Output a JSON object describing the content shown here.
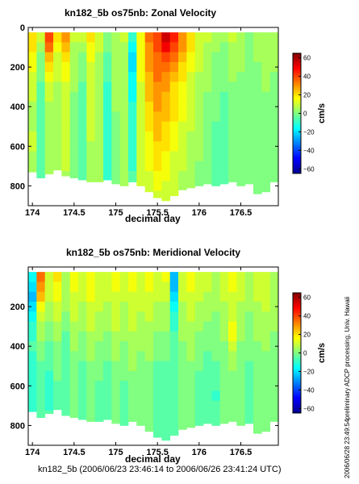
{
  "footer": {
    "caption": "kn182_5b (2006/06/23 23:46:14 to 2006/06/26 23:41:24 UTC)",
    "credit": "preliminary ADCP processing,  Univ. Hawaii",
    "timestamp": "2006/06/28 23:49:54"
  },
  "chart_data": [
    {
      "type": "heatmap",
      "title": "kn182_5b os75nb: Zonal Velocity",
      "xlabel": "decimal day",
      "ylabel": "",
      "colorbar_label": "cm/s",
      "xlim": [
        173.95,
        176.95
      ],
      "ylim": [
        900,
        0
      ],
      "x_ticks": [
        174,
        174.5,
        175,
        175.5,
        176,
        176.5
      ],
      "x_tick_labels": [
        "174",
        "174.5",
        "175",
        "175.5",
        "176",
        "176.5"
      ],
      "y_ticks": [
        0,
        200,
        400,
        600,
        800
      ],
      "y_tick_labels": [
        "0",
        "200",
        "400",
        "600",
        "800"
      ],
      "colorbar_ticks": [
        60,
        40,
        20,
        0,
        -20,
        -40,
        -60
      ],
      "colorbar_tick_labels": [
        "60",
        "40",
        "20",
        "0",
        "−20",
        "−40",
        "−60"
      ],
      "color_range": [
        -65,
        65
      ],
      "colormap": [
        "#00008f",
        "#0000ff",
        "#0080ff",
        "#00ffff",
        "#80ff80",
        "#ffff00",
        "#ff8000",
        "#ff0000",
        "#800000"
      ],
      "missing_color": "#ffffff",
      "x": [
        174.0,
        174.1,
        174.2,
        174.3,
        174.4,
        174.5,
        174.6,
        174.7,
        174.8,
        174.9,
        175.0,
        175.1,
        175.2,
        175.3,
        175.4,
        175.5,
        175.6,
        175.7,
        175.8,
        175.9,
        176.0,
        176.1,
        176.2,
        176.3,
        176.4,
        176.5,
        176.6,
        176.7,
        176.8,
        176.9
      ],
      "depth": [
        50,
        100,
        150,
        200,
        250,
        300,
        350,
        400,
        450,
        500,
        550,
        600,
        650,
        700,
        750,
        800,
        850
      ],
      "bottom_depth": [
        730,
        760,
        740,
        720,
        750,
        760,
        770,
        780,
        780,
        770,
        790,
        800,
        780,
        800,
        830,
        860,
        880,
        850,
        820,
        810,
        800,
        790,
        800,
        790,
        780,
        800,
        790,
        840,
        830,
        780
      ],
      "values": [
        [
          20,
          10,
          40,
          20,
          30,
          10,
          10,
          20,
          10,
          0,
          5,
          10,
          -10,
          15,
          35,
          40,
          55,
          45,
          30,
          20,
          10,
          10,
          5,
          5,
          10,
          5,
          0,
          5,
          5,
          5
        ],
        [
          20,
          5,
          35,
          15,
          25,
          5,
          5,
          15,
          10,
          0,
          5,
          5,
          -15,
          15,
          30,
          40,
          50,
          40,
          30,
          20,
          10,
          5,
          5,
          0,
          5,
          5,
          0,
          5,
          5,
          5
        ],
        [
          15,
          0,
          25,
          10,
          20,
          5,
          0,
          15,
          5,
          -5,
          5,
          5,
          -20,
          15,
          30,
          35,
          40,
          35,
          25,
          15,
          10,
          5,
          0,
          0,
          5,
          5,
          0,
          5,
          5,
          5
        ],
        [
          15,
          0,
          20,
          10,
          15,
          5,
          0,
          10,
          5,
          -5,
          5,
          5,
          -20,
          15,
          30,
          35,
          35,
          30,
          20,
          15,
          10,
          5,
          0,
          0,
          5,
          5,
          0,
          0,
          5,
          5
        ],
        [
          10,
          0,
          15,
          10,
          15,
          5,
          0,
          10,
          5,
          -5,
          5,
          5,
          -15,
          15,
          25,
          35,
          30,
          25,
          20,
          10,
          5,
          5,
          0,
          0,
          5,
          0,
          0,
          0,
          5,
          0
        ],
        [
          10,
          -5,
          10,
          5,
          10,
          5,
          -5,
          10,
          5,
          -10,
          5,
          5,
          -15,
          10,
          25,
          30,
          30,
          20,
          15,
          10,
          5,
          5,
          0,
          0,
          0,
          0,
          0,
          0,
          5,
          0
        ],
        [
          10,
          -5,
          10,
          5,
          10,
          0,
          -5,
          10,
          5,
          -10,
          5,
          5,
          -15,
          10,
          25,
          30,
          25,
          20,
          15,
          10,
          5,
          0,
          0,
          -5,
          0,
          0,
          0,
          0,
          0,
          0
        ],
        [
          5,
          -5,
          5,
          5,
          10,
          0,
          -5,
          10,
          5,
          -10,
          5,
          5,
          -10,
          10,
          20,
          30,
          25,
          20,
          15,
          10,
          5,
          0,
          0,
          -5,
          0,
          0,
          0,
          0,
          0,
          0
        ],
        [
          5,
          -5,
          5,
          5,
          10,
          0,
          -5,
          10,
          5,
          -10,
          0,
          5,
          -10,
          10,
          20,
          25,
          25,
          20,
          15,
          10,
          5,
          0,
          0,
          -5,
          0,
          0,
          0,
          0,
          0,
          0
        ],
        [
          5,
          -5,
          5,
          5,
          10,
          0,
          -5,
          10,
          5,
          -10,
          0,
          5,
          -10,
          10,
          20,
          25,
          20,
          15,
          10,
          10,
          5,
          0,
          -5,
          -5,
          0,
          0,
          0,
          0,
          0,
          0
        ],
        [
          10,
          -5,
          5,
          5,
          10,
          0,
          -5,
          10,
          5,
          -10,
          0,
          5,
          -10,
          10,
          15,
          25,
          20,
          15,
          10,
          5,
          5,
          0,
          -5,
          -5,
          0,
          0,
          0,
          0,
          0,
          0
        ],
        [
          10,
          -5,
          5,
          5,
          10,
          0,
          -5,
          5,
          5,
          -10,
          0,
          5,
          -10,
          10,
          15,
          20,
          20,
          15,
          10,
          5,
          5,
          0,
          -5,
          -5,
          0,
          0,
          0,
          0,
          0,
          0
        ],
        [
          5,
          -5,
          5,
          5,
          10,
          0,
          -5,
          5,
          5,
          -10,
          0,
          5,
          -10,
          10,
          15,
          20,
          15,
          10,
          10,
          5,
          5,
          0,
          -5,
          -5,
          0,
          0,
          0,
          0,
          0,
          0
        ],
        [
          5,
          -5,
          5,
          5,
          10,
          0,
          -5,
          5,
          5,
          -10,
          0,
          5,
          -10,
          10,
          15,
          20,
          15,
          10,
          10,
          5,
          0,
          0,
          -5,
          -5,
          0,
          0,
          0,
          0,
          0,
          0
        ],
        [
          5,
          -5,
          5,
          5,
          5,
          0,
          -5,
          5,
          5,
          -10,
          0,
          5,
          -5,
          10,
          10,
          15,
          15,
          10,
          5,
          5,
          0,
          0,
          -5,
          -5,
          0,
          0,
          0,
          0,
          0,
          0
        ],
        [
          5,
          -5,
          5,
          5,
          5,
          0,
          -5,
          5,
          5,
          -5,
          0,
          5,
          -5,
          10,
          10,
          15,
          10,
          10,
          5,
          5,
          0,
          0,
          -5,
          -5,
          0,
          0,
          0,
          0,
          0,
          0
        ],
        [
          5,
          0,
          5,
          5,
          5,
          0,
          0,
          5,
          5,
          -5,
          0,
          5,
          -5,
          10,
          10,
          10,
          10,
          10,
          5,
          5,
          0,
          0,
          -5,
          -5,
          0,
          0,
          0,
          0,
          0,
          0
        ]
      ]
    },
    {
      "type": "heatmap",
      "title": "kn182_5b os75nb: Meridional Velocity",
      "xlabel": "decimal day",
      "ylabel": "",
      "colorbar_label": "cm/s",
      "xlim": [
        173.95,
        176.95
      ],
      "ylim": [
        900,
        0
      ],
      "x_ticks": [
        174,
        174.5,
        175,
        175.5,
        176,
        176.5
      ],
      "x_tick_labels": [
        "174",
        "174.5",
        "175",
        "175.5",
        "176",
        "176.5"
      ],
      "y_ticks": [
        200,
        400,
        600,
        800
      ],
      "y_tick_labels": [
        "200",
        "400",
        "600",
        "800"
      ],
      "colorbar_ticks": [
        60,
        40,
        20,
        0,
        -20,
        -40,
        -60
      ],
      "colorbar_tick_labels": [
        "60",
        "40",
        "20",
        "0",
        "−20",
        "−40",
        "−60"
      ],
      "color_range": [
        -65,
        65
      ],
      "colormap": [
        "#00008f",
        "#0000ff",
        "#0080ff",
        "#00ffff",
        "#80ff80",
        "#ffff00",
        "#ff8000",
        "#ff0000",
        "#800000"
      ],
      "missing_color": "#ffffff",
      "x": [
        174.0,
        174.1,
        174.2,
        174.3,
        174.4,
        174.5,
        174.6,
        174.7,
        174.8,
        174.9,
        175.0,
        175.1,
        175.2,
        175.3,
        175.4,
        175.5,
        175.6,
        175.7,
        175.8,
        175.9,
        176.0,
        176.1,
        176.2,
        176.3,
        176.4,
        176.5,
        176.6,
        176.7,
        176.8,
        176.9
      ],
      "depth": [
        50,
        100,
        150,
        200,
        250,
        300,
        350,
        400,
        450,
        500,
        550,
        600,
        650,
        700,
        750,
        800,
        850
      ],
      "bottom_depth": [
        730,
        760,
        740,
        720,
        750,
        760,
        770,
        780,
        780,
        770,
        790,
        800,
        780,
        800,
        830,
        860,
        880,
        850,
        820,
        810,
        800,
        790,
        800,
        790,
        780,
        800,
        790,
        840,
        830,
        780
      ],
      "values": [
        [
          -15,
          35,
          10,
          20,
          5,
          15,
          10,
          15,
          10,
          10,
          15,
          10,
          15,
          10,
          15,
          10,
          15,
          -25,
          10,
          15,
          10,
          10,
          5,
          10,
          15,
          10,
          5,
          10,
          10,
          5
        ],
        [
          -20,
          30,
          10,
          15,
          5,
          15,
          10,
          15,
          10,
          10,
          15,
          10,
          15,
          10,
          15,
          10,
          10,
          -25,
          10,
          15,
          10,
          10,
          5,
          10,
          15,
          10,
          5,
          10,
          10,
          5
        ],
        [
          -25,
          25,
          10,
          15,
          5,
          10,
          10,
          15,
          10,
          10,
          10,
          10,
          10,
          10,
          10,
          10,
          10,
          -20,
          10,
          10,
          10,
          5,
          5,
          10,
          10,
          10,
          5,
          10,
          10,
          5
        ],
        [
          -20,
          15,
          5,
          10,
          5,
          10,
          5,
          10,
          10,
          5,
          10,
          5,
          10,
          10,
          10,
          5,
          5,
          -15,
          5,
          10,
          5,
          5,
          5,
          5,
          10,
          5,
          5,
          5,
          10,
          5
        ],
        [
          -15,
          10,
          5,
          10,
          0,
          10,
          5,
          10,
          5,
          5,
          10,
          5,
          10,
          5,
          10,
          5,
          5,
          -10,
          5,
          10,
          5,
          5,
          0,
          5,
          10,
          5,
          0,
          5,
          5,
          5
        ],
        [
          -10,
          5,
          0,
          5,
          0,
          5,
          5,
          10,
          5,
          5,
          10,
          5,
          10,
          5,
          5,
          5,
          5,
          -10,
          5,
          5,
          5,
          0,
          0,
          5,
          15,
          5,
          0,
          5,
          5,
          5
        ],
        [
          -10,
          5,
          0,
          5,
          -5,
          5,
          0,
          5,
          5,
          0,
          5,
          5,
          5,
          5,
          5,
          0,
          0,
          -5,
          5,
          5,
          0,
          0,
          0,
          5,
          15,
          5,
          0,
          5,
          5,
          0
        ],
        [
          -5,
          0,
          -5,
          0,
          -5,
          5,
          0,
          5,
          0,
          0,
          5,
          0,
          5,
          5,
          5,
          0,
          0,
          -5,
          0,
          5,
          0,
          0,
          0,
          0,
          10,
          0,
          0,
          0,
          5,
          0
        ],
        [
          -10,
          0,
          -5,
          0,
          -5,
          0,
          0,
          5,
          0,
          0,
          5,
          0,
          5,
          0,
          5,
          0,
          0,
          -5,
          0,
          5,
          0,
          -5,
          0,
          0,
          5,
          0,
          0,
          0,
          0,
          0
        ],
        [
          -10,
          -5,
          -5,
          0,
          -5,
          0,
          -5,
          0,
          0,
          -5,
          0,
          0,
          5,
          0,
          0,
          -5,
          -5,
          -5,
          0,
          0,
          0,
          -5,
          -5,
          0,
          5,
          0,
          -5,
          0,
          0,
          0
        ],
        [
          -10,
          -5,
          -10,
          0,
          -5,
          0,
          -5,
          0,
          0,
          -5,
          0,
          0,
          0,
          0,
          0,
          -5,
          -5,
          -5,
          0,
          0,
          -5,
          -5,
          -5,
          0,
          0,
          0,
          -5,
          0,
          0,
          0
        ],
        [
          -10,
          -5,
          -10,
          -5,
          -5,
          0,
          -5,
          0,
          -5,
          -5,
          0,
          -5,
          0,
          0,
          0,
          -5,
          -5,
          -5,
          0,
          0,
          -5,
          -5,
          -5,
          0,
          0,
          0,
          -5,
          0,
          0,
          0
        ],
        [
          -10,
          -5,
          -10,
          -5,
          -5,
          0,
          -5,
          0,
          -5,
          -5,
          0,
          -5,
          0,
          0,
          0,
          -5,
          -5,
          -5,
          0,
          0,
          -5,
          -5,
          -10,
          0,
          0,
          0,
          -5,
          0,
          0,
          0
        ],
        [
          -10,
          -5,
          -10,
          -5,
          -5,
          0,
          -5,
          0,
          -5,
          -5,
          0,
          -5,
          0,
          0,
          0,
          -5,
          -5,
          -5,
          0,
          0,
          -5,
          -5,
          -5,
          0,
          0,
          0,
          -5,
          0,
          0,
          0
        ],
        [
          -10,
          -5,
          -5,
          -5,
          -5,
          0,
          -5,
          0,
          -5,
          -5,
          0,
          -5,
          0,
          0,
          0,
          -5,
          -5,
          -5,
          0,
          0,
          -5,
          -5,
          -5,
          0,
          0,
          0,
          -5,
          0,
          0,
          0
        ],
        [
          -5,
          -5,
          -5,
          -5,
          -5,
          0,
          -5,
          0,
          -5,
          -5,
          0,
          -5,
          0,
          0,
          0,
          -5,
          -5,
          -5,
          0,
          0,
          -5,
          -5,
          -5,
          0,
          0,
          0,
          -5,
          0,
          0,
          0
        ],
        [
          -5,
          -5,
          -5,
          -5,
          -5,
          0,
          -5,
          0,
          -5,
          -5,
          0,
          -5,
          0,
          0,
          0,
          -5,
          -5,
          -5,
          0,
          0,
          -5,
          -5,
          -5,
          0,
          0,
          0,
          -5,
          0,
          0,
          0
        ]
      ]
    }
  ]
}
